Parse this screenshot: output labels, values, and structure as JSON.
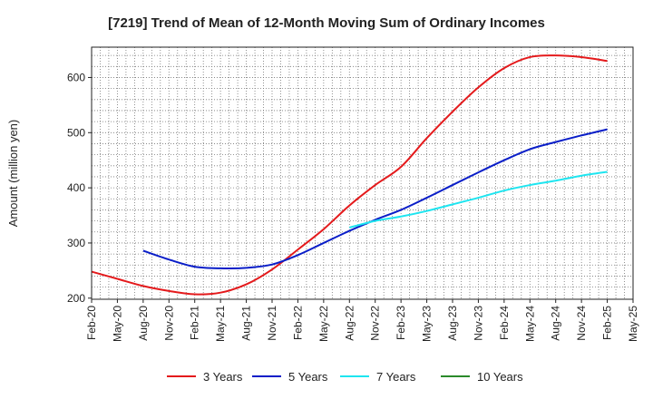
{
  "chart_data": {
    "type": "line",
    "title": "[7219]  Trend of Mean of 12-Month Moving Sum of Ordinary Incomes",
    "xlabel": "",
    "ylabel": "Amount (million yen)",
    "ylim": [
      198,
      655
    ],
    "yticks": [
      200,
      300,
      400,
      500,
      600
    ],
    "grid": true,
    "legend_position": "bottom",
    "categories": [
      "Feb-20",
      "May-20",
      "Aug-20",
      "Nov-20",
      "Feb-21",
      "May-21",
      "Aug-21",
      "Nov-21",
      "Feb-22",
      "May-22",
      "Aug-22",
      "Nov-22",
      "Feb-23",
      "May-23",
      "Aug-23",
      "Nov-23",
      "Feb-24",
      "May-24",
      "Aug-24",
      "Nov-24",
      "Feb-25",
      "May-25"
    ],
    "series": [
      {
        "name": "3 Years",
        "color": "#e41a1c",
        "values": [
          248,
          235,
          222,
          213,
          207,
          210,
          225,
          252,
          288,
          325,
          368,
          405,
          438,
          490,
          538,
          582,
          617,
          637,
          640,
          637,
          630,
          null
        ]
      },
      {
        "name": "5 Years",
        "color": "#0a1ec8",
        "values": [
          null,
          null,
          286,
          270,
          257,
          254,
          255,
          261,
          278,
          300,
          322,
          342,
          360,
          382,
          405,
          428,
          450,
          470,
          483,
          495,
          506,
          null
        ]
      },
      {
        "name": "7 Years",
        "color": "#1ee5f0",
        "values": [
          null,
          null,
          null,
          null,
          null,
          null,
          null,
          null,
          null,
          null,
          328,
          340,
          348,
          358,
          370,
          382,
          395,
          405,
          413,
          422,
          429,
          null
        ]
      },
      {
        "name": "10 Years",
        "color": "#2a8a2a",
        "values": [
          null,
          null,
          null,
          null,
          null,
          null,
          null,
          null,
          null,
          null,
          null,
          null,
          null,
          null,
          null,
          null,
          null,
          null,
          null,
          null,
          null,
          null
        ]
      }
    ]
  }
}
